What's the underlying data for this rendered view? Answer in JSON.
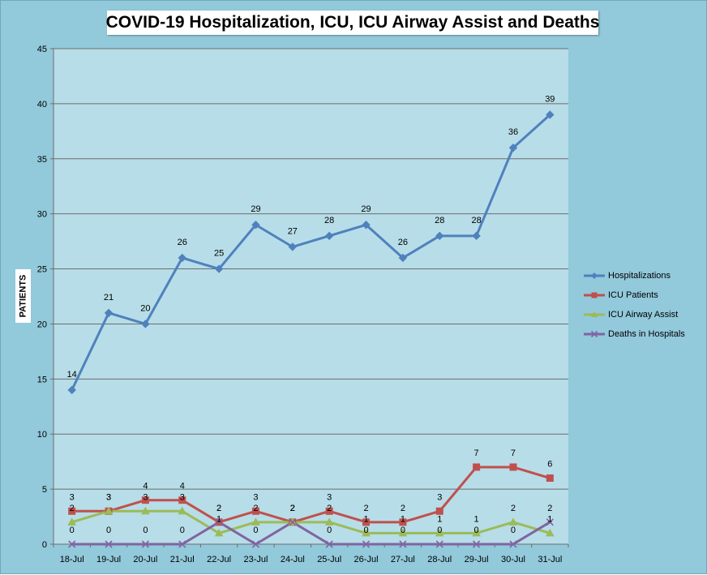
{
  "chart_data": {
    "type": "line",
    "title": "COVID-19 Hospitalization, ICU, ICU Airway Assist and Deaths",
    "xlabel": "",
    "ylabel": "PATIENTS",
    "ylim": [
      0,
      45
    ],
    "yticks": [
      "0",
      "5",
      "10",
      "15",
      "20",
      "25",
      "30",
      "35",
      "40",
      "45"
    ],
    "grid": true,
    "legend_position": "right",
    "categories": [
      "18-Jul",
      "19-Jul",
      "20-Jul",
      "21-Jul",
      "22-Jul",
      "23-Jul",
      "24-Jul",
      "25-Jul",
      "26-Jul",
      "27-Jul",
      "28-Jul",
      "29-Jul",
      "30-Jul",
      "31-Jul"
    ],
    "series": [
      {
        "name": "Hospitalizations",
        "color": "#4f81bd",
        "marker": "diamond",
        "values": [
          14,
          21,
          20,
          26,
          25,
          29,
          27,
          28,
          29,
          26,
          28,
          28,
          36,
          39
        ]
      },
      {
        "name": "ICU Patients",
        "color": "#c0504d",
        "marker": "square",
        "values": [
          3,
          3,
          4,
          4,
          2,
          3,
          2,
          3,
          2,
          2,
          3,
          7,
          7,
          6
        ]
      },
      {
        "name": "ICU Airway Assist",
        "color": "#9bbb59",
        "marker": "triangle",
        "values": [
          2,
          3,
          3,
          3,
          1,
          2,
          2,
          2,
          1,
          1,
          1,
          1,
          2,
          1
        ]
      },
      {
        "name": "Deaths in Hospitals",
        "color": "#8064a2",
        "marker": "x",
        "values": [
          0,
          0,
          0,
          0,
          2,
          0,
          2,
          0,
          0,
          0,
          0,
          0,
          0,
          2
        ]
      }
    ]
  }
}
